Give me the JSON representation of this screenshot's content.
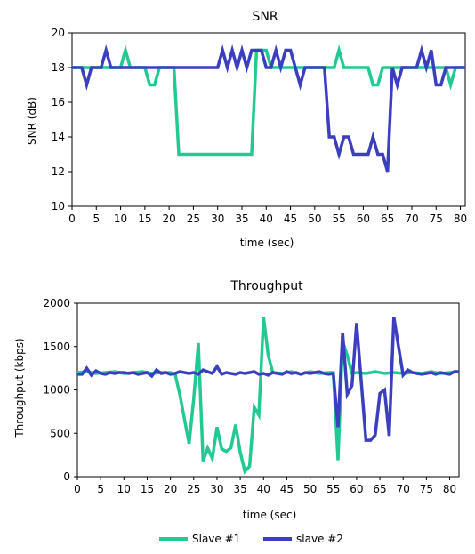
{
  "chart_data": [
    {
      "type": "line",
      "title": "SNR",
      "xlabel": "time (sec)",
      "ylabel": "SNR (dB)",
      "xlim": [
        0,
        81
      ],
      "ylim": [
        10,
        20
      ],
      "xticks": [
        0,
        5,
        10,
        15,
        20,
        25,
        30,
        35,
        40,
        45,
        50,
        55,
        60,
        65,
        70,
        75,
        80
      ],
      "yticks": [
        10,
        12,
        14,
        16,
        18,
        20
      ],
      "grid": false,
      "series": [
        {
          "name": "Slave #1",
          "color": "#22c993",
          "x": [
            0,
            1,
            2,
            3,
            4,
            5,
            6,
            7,
            8,
            9,
            10,
            11,
            12,
            13,
            14,
            15,
            16,
            17,
            18,
            19,
            20,
            21,
            22,
            23,
            24,
            25,
            26,
            27,
            28,
            29,
            30,
            31,
            32,
            33,
            34,
            35,
            36,
            37,
            38,
            39,
            40,
            41,
            42,
            43,
            44,
            45,
            46,
            47,
            48,
            49,
            50,
            51,
            52,
            53,
            54,
            55,
            56,
            57,
            58,
            59,
            60,
            61,
            62,
            63,
            64,
            65,
            66,
            67,
            68,
            69,
            70,
            71,
            72,
            73,
            74,
            75,
            76,
            77,
            78,
            79,
            80,
            81
          ],
          "y": [
            18,
            18,
            18,
            18,
            18,
            18,
            18,
            18,
            18,
            18,
            18,
            19,
            18,
            18,
            18,
            18,
            17,
            17,
            18,
            18,
            18,
            18,
            13,
            13,
            13,
            13,
            13,
            13,
            13,
            13,
            13,
            13,
            13,
            13,
            13,
            13,
            13,
            13,
            19,
            19,
            19,
            18,
            18,
            18,
            18,
            18,
            18,
            18,
            18,
            18,
            18,
            18,
            18,
            18,
            18,
            19,
            18,
            18,
            18,
            18,
            18,
            18,
            17,
            17,
            18,
            18,
            18,
            18,
            18,
            18,
            18,
            18,
            18,
            18,
            18,
            18,
            18,
            18,
            17,
            18,
            18,
            18
          ]
        },
        {
          "name": "slave #2",
          "color": "#3b3fbf",
          "x": [
            0,
            1,
            2,
            3,
            4,
            5,
            6,
            7,
            8,
            9,
            10,
            11,
            12,
            13,
            14,
            15,
            16,
            17,
            18,
            19,
            20,
            21,
            22,
            23,
            24,
            25,
            26,
            27,
            28,
            29,
            30,
            31,
            32,
            33,
            34,
            35,
            36,
            37,
            38,
            39,
            40,
            41,
            42,
            43,
            44,
            45,
            46,
            47,
            48,
            49,
            50,
            51,
            52,
            53,
            54,
            55,
            56,
            57,
            58,
            59,
            60,
            61,
            62,
            63,
            64,
            65,
            66,
            67,
            68,
            69,
            70,
            71,
            72,
            73,
            74,
            75,
            76,
            77,
            78,
            79,
            80,
            81
          ],
          "y": [
            18,
            18,
            18,
            17,
            18,
            18,
            18,
            19,
            18,
            18,
            18,
            18,
            18,
            18,
            18,
            18,
            18,
            18,
            18,
            18,
            18,
            18,
            18,
            18,
            18,
            18,
            18,
            18,
            18,
            18,
            18,
            19,
            18,
            19,
            18,
            19,
            18,
            19,
            19,
            19,
            18,
            18,
            19,
            18,
            19,
            19,
            18,
            17,
            18,
            18,
            18,
            18,
            18,
            14,
            14,
            13,
            14,
            14,
            13,
            13,
            13,
            13,
            14,
            13,
            13,
            12,
            18,
            17,
            18,
            18,
            18,
            18,
            19,
            18,
            19,
            17,
            17,
            18,
            18,
            18,
            18,
            18
          ]
        }
      ]
    },
    {
      "type": "line",
      "title": "Throughput",
      "xlabel": "time (sec)",
      "ylabel": "Throughput (kbps)",
      "xlim": [
        0,
        82
      ],
      "ylim": [
        0,
        2000
      ],
      "xticks": [
        0,
        5,
        10,
        15,
        20,
        25,
        30,
        35,
        40,
        45,
        50,
        55,
        60,
        65,
        70,
        75,
        80
      ],
      "yticks": [
        0,
        500,
        1000,
        1500,
        2000
      ],
      "grid": false,
      "series": [
        {
          "name": "Slave #1",
          "color": "#22c993",
          "x": [
            0,
            2,
            4,
            6,
            8,
            10,
            12,
            14,
            16,
            18,
            20,
            21,
            22,
            24,
            25,
            26,
            27,
            28,
            29,
            30,
            31,
            32,
            33,
            34,
            35,
            36,
            37,
            38,
            39,
            40,
            41,
            42,
            44,
            46,
            48,
            50,
            52,
            54,
            55,
            56,
            57,
            58,
            59,
            60,
            62,
            64,
            66,
            68,
            70,
            72,
            74,
            76,
            78,
            80,
            82
          ],
          "y": [
            1200,
            1210,
            1190,
            1200,
            1210,
            1190,
            1200,
            1210,
            1190,
            1200,
            1200,
            1180,
            950,
            380,
            900,
            1540,
            180,
            330,
            210,
            570,
            320,
            290,
            330,
            600,
            280,
            60,
            120,
            800,
            710,
            1840,
            1400,
            1200,
            1190,
            1210,
            1180,
            1210,
            1190,
            1200,
            1200,
            190,
            1560,
            1400,
            1190,
            1200,
            1190,
            1210,
            1190,
            1200,
            1190,
            1200,
            1190,
            1210,
            1190,
            1200,
            1210
          ]
        },
        {
          "name": "slave #2",
          "color": "#3b3fbf",
          "x": [
            0,
            1,
            2,
            3,
            4,
            5,
            6,
            7,
            8,
            9,
            10,
            11,
            12,
            13,
            14,
            15,
            16,
            17,
            18,
            19,
            20,
            21,
            22,
            23,
            24,
            25,
            26,
            27,
            28,
            29,
            30,
            31,
            32,
            33,
            34,
            35,
            36,
            37,
            38,
            39,
            40,
            41,
            42,
            43,
            44,
            45,
            46,
            47,
            48,
            49,
            50,
            51,
            52,
            53,
            54,
            55,
            56,
            57,
            58,
            59,
            60,
            61,
            62,
            63,
            64,
            65,
            66,
            67,
            68,
            69,
            70,
            71,
            72,
            73,
            74,
            75,
            76,
            77,
            78,
            79,
            80,
            81,
            82
          ],
          "y": [
            1180,
            1180,
            1250,
            1170,
            1220,
            1190,
            1180,
            1200,
            1190,
            1200,
            1200,
            1190,
            1200,
            1180,
            1190,
            1200,
            1160,
            1230,
            1190,
            1200,
            1180,
            1190,
            1210,
            1200,
            1190,
            1200,
            1180,
            1230,
            1210,
            1190,
            1270,
            1180,
            1200,
            1190,
            1180,
            1200,
            1190,
            1200,
            1210,
            1180,
            1190,
            1170,
            1200,
            1190,
            1180,
            1210,
            1190,
            1200,
            1180,
            1200,
            1190,
            1200,
            1210,
            1190,
            1180,
            1190,
            570,
            1660,
            950,
            1050,
            1770,
            1100,
            420,
            420,
            480,
            960,
            1000,
            470,
            1840,
            1500,
            1170,
            1230,
            1200,
            1190,
            1180,
            1190,
            1200,
            1180,
            1200,
            1190,
            1180,
            1210,
            1210
          ]
        }
      ]
    }
  ],
  "legend": {
    "items": [
      {
        "label": "Slave #1",
        "color": "#22c993"
      },
      {
        "label": "slave #2",
        "color": "#3b3fbf"
      }
    ]
  }
}
